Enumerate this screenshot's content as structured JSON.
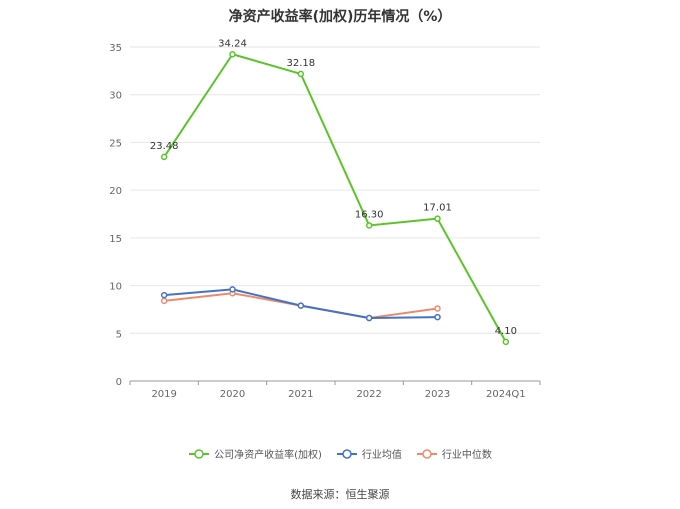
{
  "chart_data": {
    "type": "line",
    "title": "净资产收益率(加权)历年情况（%）",
    "categories": [
      "2019",
      "2020",
      "2021",
      "2022",
      "2023",
      "2024Q1"
    ],
    "y_ticks": [
      "0",
      "5",
      "10",
      "15",
      "20",
      "25",
      "30",
      "35"
    ],
    "ylim": [
      0,
      35
    ],
    "grid": true,
    "legend_position": "bottom",
    "series": [
      {
        "name": "公司净资产收益率(加权)",
        "color": "#5cc42a",
        "values": [
          23.48,
          34.24,
          32.18,
          16.3,
          17.01,
          4.1
        ],
        "labels": [
          "23.48",
          "34.24",
          "32.18",
          "16.30",
          "17.01",
          "4.10"
        ]
      },
      {
        "name": "行业均值",
        "color": "#4472c4",
        "values": [
          9.0,
          9.6,
          7.9,
          6.6,
          6.7,
          null
        ]
      },
      {
        "name": "行业中位数",
        "color": "#ed8a6d",
        "values": [
          8.4,
          9.2,
          7.9,
          6.6,
          7.6,
          null
        ]
      }
    ]
  },
  "source": "数据来源：恒生聚源"
}
